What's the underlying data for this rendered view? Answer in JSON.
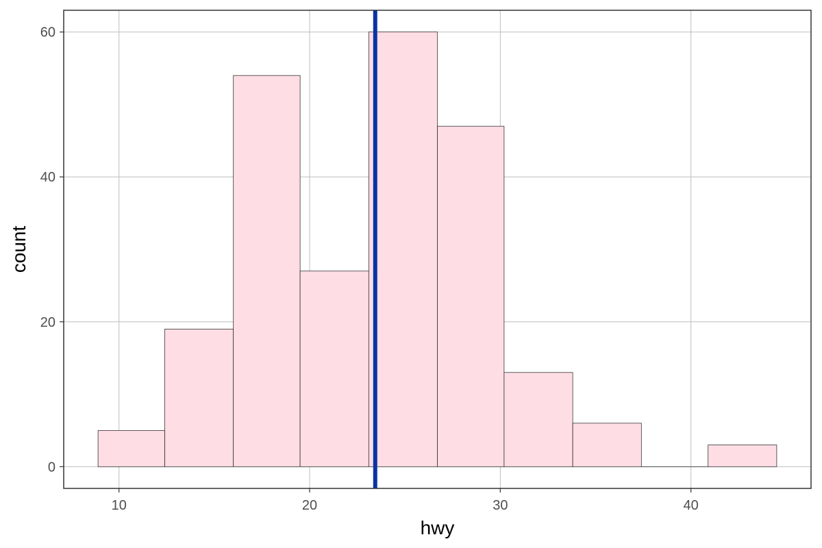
{
  "chart_data": {
    "type": "bar",
    "subtype": "histogram",
    "xlabel": "hwy",
    "ylabel": "count",
    "bins": [
      {
        "xmin": 8.9,
        "xmax": 12.4,
        "count": 5
      },
      {
        "xmin": 12.4,
        "xmax": 16.0,
        "count": 19
      },
      {
        "xmin": 16.0,
        "xmax": 19.5,
        "count": 54
      },
      {
        "xmin": 19.5,
        "xmax": 23.1,
        "count": 27
      },
      {
        "xmin": 23.1,
        "xmax": 26.7,
        "count": 60
      },
      {
        "xmin": 26.7,
        "xmax": 30.2,
        "count": 47
      },
      {
        "xmin": 30.2,
        "xmax": 33.8,
        "count": 13
      },
      {
        "xmin": 33.8,
        "xmax": 37.4,
        "count": 6
      },
      {
        "xmin": 37.4,
        "xmax": 40.9,
        "count": 0
      },
      {
        "xmin": 40.9,
        "xmax": 44.5,
        "count": 3
      }
    ],
    "reference_line": {
      "orientation": "vertical",
      "x": 23.44,
      "color": "#0a34a0"
    },
    "xlim": [
      7.1,
      46.3
    ],
    "ylim": [
      -3,
      63
    ],
    "x_ticks": [
      10,
      20,
      30,
      40
    ],
    "y_ticks": [
      0,
      20,
      40,
      60
    ],
    "x_tick_labels": [
      "10",
      "20",
      "30",
      "40"
    ],
    "y_tick_labels": [
      "0",
      "20",
      "40",
      "60"
    ],
    "grid": true,
    "legend": "none",
    "colors": {
      "bar_fill": "#ffdde5",
      "bar_stroke": "#1a1a1a",
      "grid": "#bebebe",
      "panel_border": "#333333",
      "reference_line": "#0a34a0"
    }
  }
}
